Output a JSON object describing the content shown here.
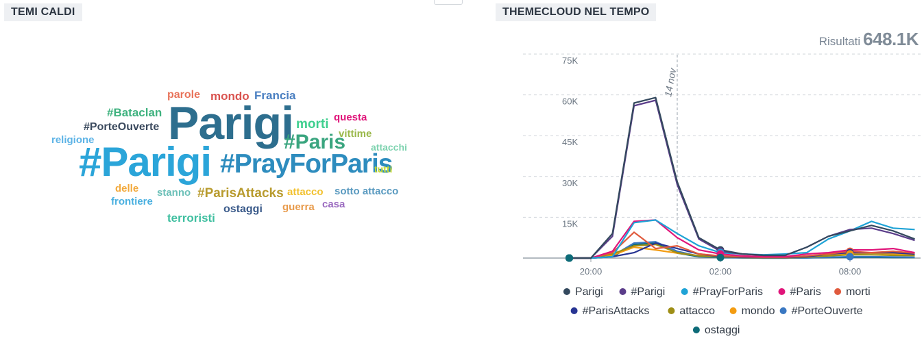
{
  "panels": {
    "left_title": "TEMI CALDI",
    "right_title": "THEMECLOUD NEL TEMPO"
  },
  "results": {
    "label": "Risultati",
    "value": "648.1K"
  },
  "wordcloud": [
    {
      "text": "parole",
      "color": "#e8735a"
    },
    {
      "text": "mondo",
      "color": "#d9534f"
    },
    {
      "text": "Francia",
      "color": "#4a7fc1"
    },
    {
      "text": "#Bataclan",
      "color": "#3fb27f"
    },
    {
      "text": "Parigi",
      "color": "#2d6e8e"
    },
    {
      "text": "questa",
      "color": "#e0157a"
    },
    {
      "text": "#PorteOuverte",
      "color": "#3b4a5e"
    },
    {
      "text": "morti",
      "color": "#3ecf8e"
    },
    {
      "text": "vittime",
      "color": "#9ab84a"
    },
    {
      "text": "religione",
      "color": "#5cb3e6"
    },
    {
      "text": "#Paris",
      "color": "#3aa57f"
    },
    {
      "text": "attacchi",
      "color": "#7fd3b0"
    },
    {
      "text": "#Parigi",
      "color": "#2ba5d9"
    },
    {
      "text": "#PrayForParis",
      "color": "#2d8cbe"
    },
    {
      "text": "tutti",
      "color": "#c5d92e"
    },
    {
      "text": "delle",
      "color": "#f2a93b"
    },
    {
      "text": "stanno",
      "color": "#6cc0b8"
    },
    {
      "text": "#ParisAttacks",
      "color": "#b89b2e"
    },
    {
      "text": "attacco",
      "color": "#f2c12e"
    },
    {
      "text": "sotto attacco",
      "color": "#5a9ac0"
    },
    {
      "text": "frontiere",
      "color": "#4ab0e0"
    },
    {
      "text": "ostaggi",
      "color": "#3a5a8a"
    },
    {
      "text": "guerra",
      "color": "#e89a4a"
    },
    {
      "text": "casa",
      "color": "#9b6bc0"
    },
    {
      "text": "terroristi",
      "color": "#3fbfa0"
    }
  ],
  "chart_data": {
    "type": "line",
    "ylim": [
      0,
      75000
    ],
    "y_ticks": [
      {
        "value": 15000,
        "label": "15K"
      },
      {
        "value": 30000,
        "label": "30K"
      },
      {
        "value": 45000,
        "label": "45K"
      },
      {
        "value": 60000,
        "label": "60K"
      },
      {
        "value": 75000,
        "label": "75K"
      }
    ],
    "x_hours": [
      0,
      1,
      2,
      3,
      4,
      5,
      6,
      7,
      8,
      9,
      10,
      11,
      12,
      13,
      14,
      15,
      16
    ],
    "x_ticks": [
      {
        "hour": 1,
        "label": "20:00"
      },
      {
        "hour": 7,
        "label": "02:00"
      },
      {
        "hour": 13,
        "label": "08:00"
      }
    ],
    "marker": {
      "hour": 5,
      "label": "14 nov"
    },
    "grid": true,
    "legend_position": "bottom",
    "series": [
      {
        "name": "Parigi",
        "color": "#34495e",
        "values": [
          0,
          0,
          9000,
          57000,
          59000,
          28000,
          7500,
          3000,
          1500,
          1000,
          1000,
          4000,
          8000,
          10000,
          12000,
          10000,
          7000
        ],
        "dot_hour": 7
      },
      {
        "name": "#Parigi",
        "color": "#5b3d8a",
        "values": [
          0,
          0,
          8000,
          56000,
          58000,
          27000,
          7000,
          2500,
          1500,
          1000,
          1000,
          4000,
          8000,
          10500,
          11000,
          9000,
          6500
        ],
        "dot_hour": 7
      },
      {
        "name": "#PrayForParis",
        "color": "#1fa3d6",
        "values": [
          0,
          0,
          500,
          13000,
          14000,
          9000,
          4500,
          2000,
          1500,
          1200,
          1500,
          2000,
          7000,
          10000,
          13500,
          11000,
          10500
        ],
        "dot_hour": 7
      },
      {
        "name": "#Paris",
        "color": "#e0157a",
        "values": [
          0,
          0,
          2500,
          13500,
          14000,
          7500,
          3000,
          1500,
          800,
          500,
          500,
          1500,
          2000,
          3000,
          3000,
          3500,
          2000
        ],
        "dot_hour": 7
      },
      {
        "name": "morti",
        "color": "#e05a3d",
        "values": [
          0,
          0,
          2000,
          9500,
          3500,
          4500,
          1500,
          800,
          500,
          300,
          300,
          800,
          1500,
          2500,
          2000,
          2500,
          1800
        ],
        "dot_hour": 13
      },
      {
        "name": "#ParisAttacks",
        "color": "#283593",
        "values": [
          0,
          0,
          500,
          2000,
          5500,
          3500,
          1500,
          600,
          300,
          200,
          200,
          500,
          1500,
          2000,
          2000,
          2000,
          1500
        ],
        "dot_hour": 13
      },
      {
        "name": "attacco",
        "color": "#9e8e16",
        "values": [
          0,
          0,
          1500,
          4500,
          5000,
          2000,
          800,
          400,
          200,
          100,
          100,
          300,
          800,
          1200,
          1200,
          1000,
          900
        ],
        "dot_hour": 13
      },
      {
        "name": "mondo",
        "color": "#f39c12",
        "values": [
          0,
          0,
          1000,
          4000,
          3000,
          1800,
          900,
          500,
          300,
          200,
          200,
          400,
          1000,
          1500,
          1800,
          1500,
          1000
        ],
        "dot_hour": 13
      },
      {
        "name": "#PorteOuverte",
        "color": "#3a78c2",
        "values": [
          0,
          0,
          800,
          5500,
          6000,
          2500,
          700,
          300,
          100,
          0,
          0,
          100,
          300,
          500,
          500,
          400,
          300
        ],
        "dot_hour": 13
      },
      {
        "name": "ostaggi",
        "color": "#0d6b78",
        "values": [
          0,
          0,
          500,
          5000,
          5500,
          1800,
          500,
          200,
          100,
          0,
          0,
          100,
          200,
          300,
          300,
          200,
          200
        ],
        "dot_hour": 7
      }
    ]
  }
}
